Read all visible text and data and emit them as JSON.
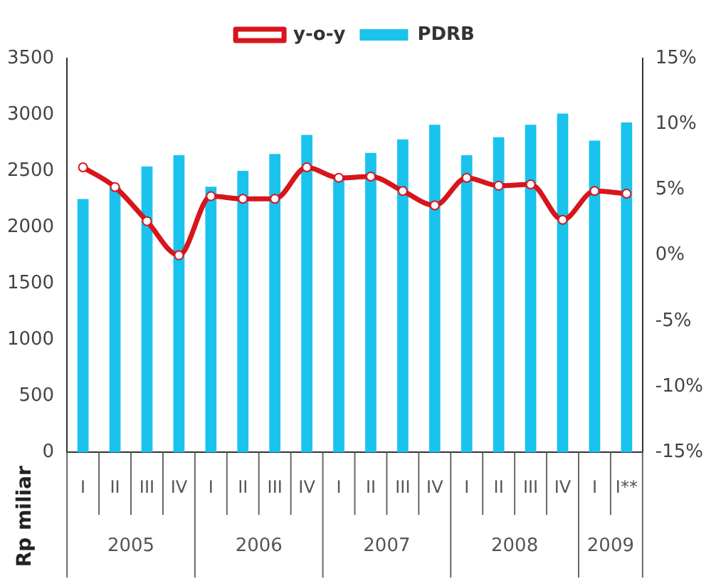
{
  "chart_data": {
    "type": "bar",
    "ylabel": "Rp miliar",
    "categories": [
      "I",
      "II",
      "III",
      "IV",
      "I",
      "II",
      "III",
      "IV",
      "I",
      "II",
      "III",
      "IV",
      "I",
      "II",
      "III",
      "IV",
      "I",
      "I**"
    ],
    "annotations": [
      "2005",
      "2006",
      "2007",
      "2008",
      "2009"
    ],
    "series": [
      {
        "name": "PDRB",
        "color": "#19c3ed",
        "values": [
          2250,
          2360,
          2540,
          2640,
          2360,
          2500,
          2650,
          2820,
          2450,
          2660,
          2780,
          2910,
          2640,
          2800,
          2910,
          3010,
          2770,
          2930
        ]
      },
      {
        "name": "y-o-y",
        "type": "line",
        "axis": "y2",
        "color": "#d7151c",
        "values": [
          6.7,
          5.2,
          2.6,
          0,
          4.5,
          4.3,
          4.3,
          6.7,
          5.9,
          6.0,
          4.9,
          3.8,
          5.9,
          5.3,
          5.4,
          2.7,
          4.9,
          4.7
        ]
      }
    ],
    "ylim": [
      0,
      3500
    ],
    "yticks": [
      0,
      500,
      1000,
      1500,
      2000,
      2500,
      3000,
      3500
    ],
    "y2lim": [
      -15,
      15
    ],
    "y2ticks": [
      {
        "value": -15,
        "label": "-15%"
      },
      {
        "value": -10,
        "label": "-10%"
      },
      {
        "value": -5,
        "label": "-5%"
      },
      {
        "value": 0,
        "label": "0%"
      },
      {
        "value": 5,
        "label": "5%"
      },
      {
        "value": 10,
        "label": "10%"
      },
      {
        "value": 15,
        "label": "15%"
      }
    ],
    "grid": false,
    "legend": "top",
    "marker": "circle",
    "line_style": "solid"
  }
}
